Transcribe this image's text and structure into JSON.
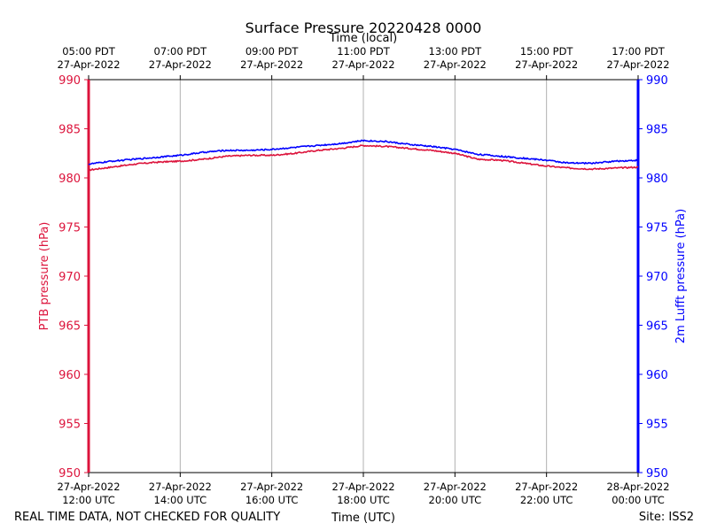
{
  "chart_data": {
    "type": "line",
    "title": "Surface Pressure 20220428 0000",
    "xlabel": "Time (UTC)",
    "x2label": "Time (local)",
    "ylabel": "PTB pressure (hPa)",
    "y2label": "2m Lufft pressure (hPa)",
    "ylim": [
      950,
      990
    ],
    "y2lim": [
      950,
      990
    ],
    "yticks": [
      "950",
      "955",
      "960",
      "965",
      "970",
      "975",
      "980",
      "985",
      "990"
    ],
    "xrange_utc_hours": [
      12,
      24
    ],
    "grid": "vertical",
    "x_ticks_utc": [
      {
        "line1": "27-Apr-2022",
        "line2": "12:00 UTC"
      },
      {
        "line1": "27-Apr-2022",
        "line2": "14:00 UTC"
      },
      {
        "line1": "27-Apr-2022",
        "line2": "16:00 UTC"
      },
      {
        "line1": "27-Apr-2022",
        "line2": "18:00 UTC"
      },
      {
        "line1": "27-Apr-2022",
        "line2": "20:00 UTC"
      },
      {
        "line1": "27-Apr-2022",
        "line2": "22:00 UTC"
      },
      {
        "line1": "28-Apr-2022",
        "line2": "00:00 UTC"
      }
    ],
    "x_ticks_local": [
      {
        "line1": "05:00 PDT",
        "line2": "27-Apr-2022"
      },
      {
        "line1": "07:00 PDT",
        "line2": "27-Apr-2022"
      },
      {
        "line1": "09:00 PDT",
        "line2": "27-Apr-2022"
      },
      {
        "line1": "11:00 PDT",
        "line2": "27-Apr-2022"
      },
      {
        "line1": "13:00 PDT",
        "line2": "27-Apr-2022"
      },
      {
        "line1": "15:00 PDT",
        "line2": "27-Apr-2022"
      },
      {
        "line1": "17:00 PDT",
        "line2": "27-Apr-2022"
      }
    ],
    "series": [
      {
        "name": "PTB pressure",
        "color": "#dc143c",
        "axis": "left",
        "x": [
          12.0,
          12.5,
          13.0,
          13.5,
          14.0,
          14.5,
          15.0,
          15.5,
          16.0,
          16.5,
          17.0,
          17.5,
          18.0,
          18.5,
          19.0,
          19.5,
          20.0,
          20.5,
          21.0,
          21.5,
          22.0,
          22.5,
          23.0,
          23.5,
          24.0
        ],
        "values": [
          980.8,
          981.1,
          981.4,
          981.6,
          981.7,
          981.9,
          982.2,
          982.3,
          982.3,
          982.5,
          982.8,
          983.0,
          983.3,
          983.2,
          983.0,
          982.8,
          982.5,
          981.9,
          981.8,
          981.5,
          981.2,
          981.0,
          980.9,
          981.0,
          981.1
        ]
      },
      {
        "name": "2m Lufft pressure",
        "color": "#0000ff",
        "axis": "right",
        "x": [
          12.0,
          12.5,
          13.0,
          13.5,
          14.0,
          14.5,
          15.0,
          15.5,
          16.0,
          16.5,
          17.0,
          17.5,
          18.0,
          18.5,
          19.0,
          19.5,
          20.0,
          20.5,
          21.0,
          21.5,
          22.0,
          22.5,
          23.0,
          23.5,
          24.0
        ],
        "values": [
          981.4,
          981.7,
          981.9,
          982.1,
          982.3,
          982.6,
          982.8,
          982.8,
          982.9,
          983.1,
          983.3,
          983.5,
          983.8,
          983.7,
          983.4,
          983.2,
          982.9,
          982.4,
          982.2,
          982.0,
          981.8,
          981.5,
          981.5,
          981.7,
          981.8
        ]
      }
    ]
  },
  "footer": {
    "quality_note": "REAL TIME DATA, NOT CHECKED FOR QUALITY",
    "site": "Site: ISS2"
  }
}
